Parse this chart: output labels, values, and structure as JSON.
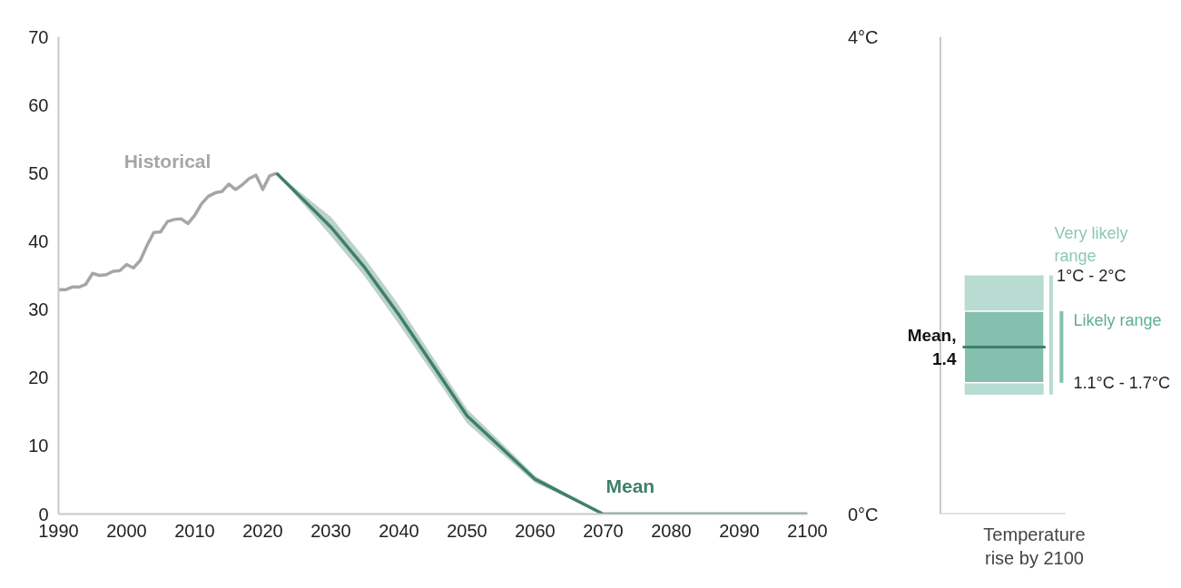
{
  "chart_data": [
    {
      "type": "line",
      "grid": false,
      "marker": "none",
      "line_style": "solid",
      "xlim": [
        1990,
        2100
      ],
      "xticks": [
        1990,
        2000,
        2010,
        2020,
        2030,
        2040,
        2050,
        2060,
        2070,
        2080,
        2090,
        2100
      ],
      "ylim": [
        0,
        70
      ],
      "yticks": [
        0,
        10,
        20,
        30,
        40,
        50,
        60,
        70
      ],
      "series": [
        {
          "name": "Historical",
          "color": "#a6a6a6",
          "x": [
            1990,
            1991,
            1992,
            1993,
            1994,
            1995,
            1996,
            1997,
            1998,
            1999,
            2000,
            2001,
            2002,
            2003,
            2004,
            2005,
            2006,
            2007,
            2008,
            2009,
            2010,
            2011,
            2012,
            2013,
            2014,
            2015,
            2016,
            2017,
            2018,
            2019,
            2020,
            2021,
            2022
          ],
          "values": [
            32.9,
            32.9,
            33.3,
            33.3,
            33.7,
            35.3,
            35.0,
            35.1,
            35.6,
            35.7,
            36.6,
            36.1,
            37.2,
            39.4,
            41.3,
            41.4,
            42.9,
            43.2,
            43.3,
            42.6,
            43.8,
            45.5,
            46.6,
            47.1,
            47.3,
            48.4,
            47.6,
            48.3,
            49.2,
            49.7,
            47.6,
            49.6,
            50.0
          ]
        },
        {
          "name": "Mean",
          "color": "#3f7f6c",
          "x": [
            2022,
            2030,
            2035,
            2040,
            2050,
            2060,
            2070,
            2080,
            2090,
            2100
          ],
          "values": [
            50,
            42.1,
            36.1,
            29.2,
            14.4,
            5.1,
            0,
            0,
            0,
            0
          ],
          "lower": [
            50,
            40.8,
            34.8,
            27.8,
            13.3,
            4.6,
            0,
            0,
            0,
            0
          ],
          "upper": [
            50,
            43.6,
            37.5,
            30.6,
            15.4,
            5.6,
            0,
            0,
            0,
            0
          ]
        }
      ]
    },
    {
      "type": "box",
      "grid": false,
      "categories": [
        null
      ],
      "xlabel": "Temperature rise by 2100",
      "ylim": [
        0,
        4
      ],
      "yticks": [
        {
          "value": 0,
          "label": "0°C"
        },
        {
          "value": 4,
          "label": "4°C"
        }
      ],
      "series": [
        {
          "color": "#85bfae",
          "boxes": [
            {
              "low": 1,
              "q1": 1.1,
              "median": 1.4,
              "q3": 1.7,
              "high": 2
            }
          ]
        }
      ],
      "annotations": [
        "Mean,\n1.4",
        "Very likely range",
        "1°C - 2°C",
        "Likely range",
        "1.1°C - 1.7°C"
      ]
    }
  ]
}
